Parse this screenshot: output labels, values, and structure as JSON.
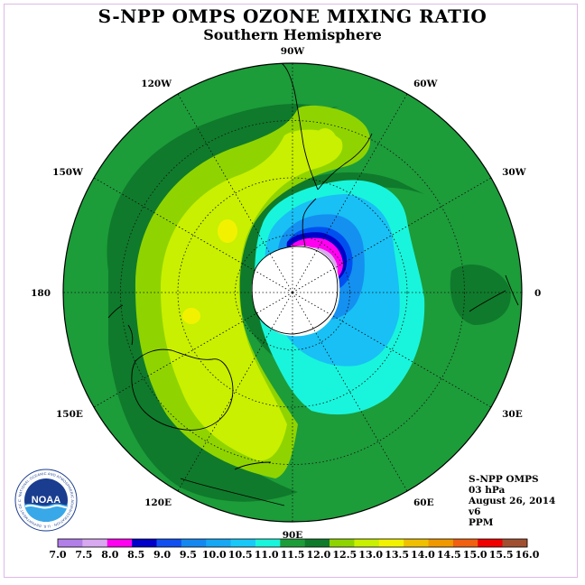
{
  "header": {
    "title": "S-NPP OMPS OZONE MIXING RATIO",
    "subtitle": "Southern Hemisphere"
  },
  "map": {
    "projection": "south-polar-stereographic",
    "longitude_labels": [
      {
        "text": "0",
        "lon": 0
      },
      {
        "text": "30E",
        "lon": 30
      },
      {
        "text": "60E",
        "lon": 60
      },
      {
        "text": "90E",
        "lon": 90
      },
      {
        "text": "120E",
        "lon": 120
      },
      {
        "text": "150E",
        "lon": 150
      },
      {
        "text": "180",
        "lon": 180
      },
      {
        "text": "150W",
        "lon": -150
      },
      {
        "text": "120W",
        "lon": -120
      },
      {
        "text": "90W",
        "lon": -90
      },
      {
        "text": "60W",
        "lon": -60
      },
      {
        "text": "30W",
        "lon": -30
      }
    ],
    "polar_night_region": "no data (white)",
    "colors": {
      "ocean_base": "#1d9c3a",
      "dark_band": "#0f7a2b",
      "light_green": "#8fd400",
      "yellow_green": "#c8f000",
      "yellow": "#f2f200",
      "cyan": "#19f5dc",
      "light_blue": "#18c0f5",
      "mid_blue": "#1490f0",
      "blue": "#0050f0",
      "navy": "#0000c8",
      "magenta": "#ff00f0",
      "lavender": "#d8a8f0",
      "purple_light": "#c080ee"
    }
  },
  "info": {
    "instrument": "S-NPP OMPS",
    "level": "03 hPa",
    "date": "August 26, 2014",
    "version": "v6",
    "units": "PPM"
  },
  "colorbar": {
    "labels": [
      "7.0",
      "7.5",
      "8.0",
      "8.5",
      "9.0",
      "9.5",
      "10.0",
      "10.5",
      "11.0",
      "11.5",
      "12.0",
      "12.5",
      "13.0",
      "13.5",
      "14.0",
      "14.5",
      "15.0",
      "15.5",
      "16.0"
    ],
    "colors": [
      "#b27fe8",
      "#d8a8f0",
      "#ff00f0",
      "#0000c8",
      "#1050f0",
      "#1488f0",
      "#16a8f5",
      "#18c8f8",
      "#19f5dc",
      "#1d9c3a",
      "#0f7a2b",
      "#8fd400",
      "#c8f000",
      "#f2f200",
      "#f0c000",
      "#f09800",
      "#f06010",
      "#f00000",
      "#a05030"
    ]
  },
  "logo": {
    "text": "NOAA",
    "ring_text": "NATIONAL OCEANIC AND ATMOSPHERIC ADMINISTRATION · U.S. DEPARTMENT OF COMMERCE"
  }
}
